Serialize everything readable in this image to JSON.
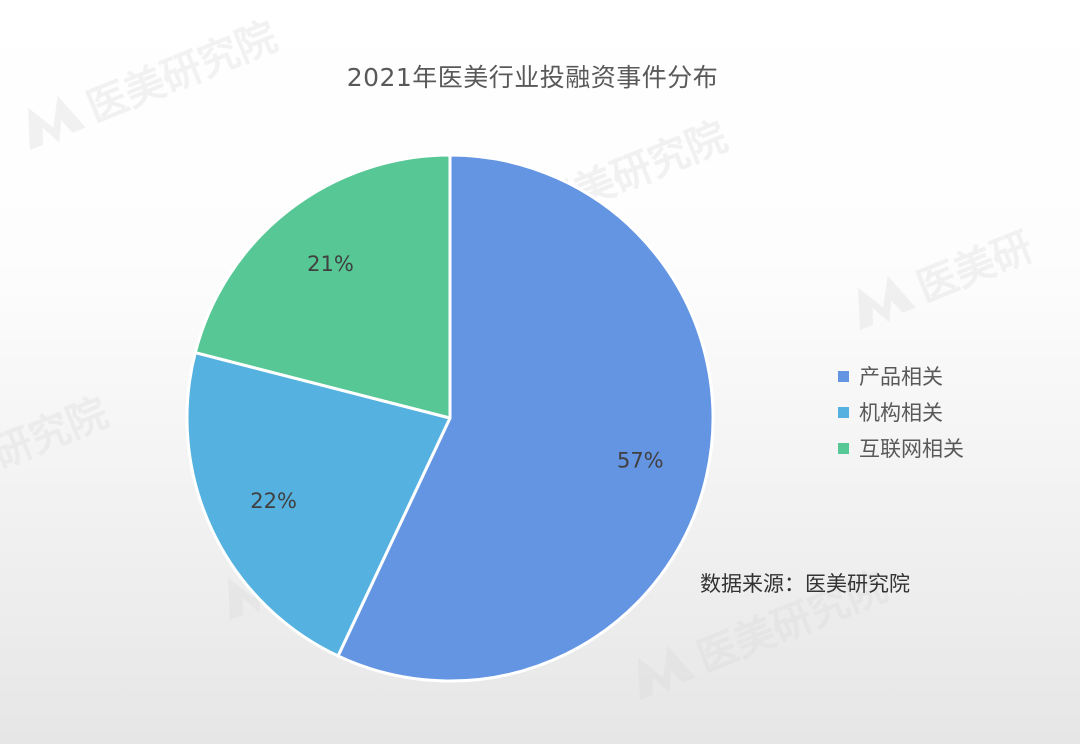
{
  "chart_data": {
    "type": "pie",
    "title": "2021年医美行业投融资事件分布",
    "categories": [
      "产品相关",
      "机构相关",
      "互联网相关"
    ],
    "values": [
      57,
      22,
      21
    ],
    "data_labels": [
      "57%",
      "22%",
      "21%"
    ],
    "colors": [
      "#6495e3",
      "#55b2e0",
      "#56c795"
    ],
    "start_angle": "12 o'clock",
    "direction": "clockwise",
    "legend_placement": "right"
  },
  "source_note": "数据来源：医美研究院",
  "watermark": {
    "text": "医美研究院",
    "icon": "m-logo-icon"
  }
}
